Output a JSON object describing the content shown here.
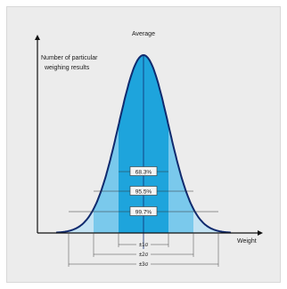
{
  "chart_data": {
    "type": "area",
    "title": "",
    "xlabel": "Weight",
    "ylabel": "Number of particular weighing results",
    "ylabel_lines": [
      "Number of particular",
      "weighing results"
    ],
    "peak_label": "Average",
    "distribution": "normal",
    "mean": 0,
    "sd": 1,
    "x_range": [
      -3.5,
      3.5
    ],
    "grid": false,
    "bands": [
      {
        "sigma": 1,
        "percent": "68.3%",
        "range_label": "±1σ",
        "color": "#1ea4dc"
      },
      {
        "sigma": 2,
        "percent": "95.5%",
        "range_label": "±2σ",
        "color": "#7ac9ec"
      },
      {
        "sigma": 3,
        "percent": "99.7%",
        "range_label": "±3σ",
        "color": "#c3e3f3"
      }
    ],
    "curve_color": "#102a6e"
  }
}
